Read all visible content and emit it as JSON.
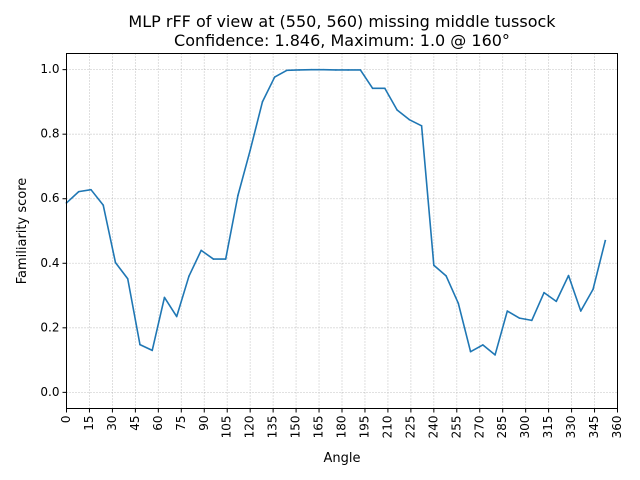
{
  "chart_data": {
    "type": "line",
    "title_line1": "MLP rFF of view at (550, 560) missing middle tussock",
    "title_line2": "Confidence: 1.846, Maximum: 1.0 @ 160°",
    "xlabel": "Angle",
    "ylabel": "Familiarity score",
    "xlim": [
      0,
      360
    ],
    "ylim": [
      -0.05,
      1.05
    ],
    "xticks": [
      0,
      15,
      30,
      45,
      60,
      75,
      90,
      105,
      120,
      135,
      150,
      165,
      180,
      195,
      210,
      225,
      240,
      255,
      270,
      285,
      300,
      315,
      330,
      345,
      360
    ],
    "yticks": [
      0.0,
      0.2,
      0.4,
      0.6,
      0.8,
      1.0
    ],
    "grid": true,
    "line_color": "#1f77b4",
    "series": [
      {
        "name": "familiarity",
        "x": [
          0,
          8,
          16,
          24,
          32,
          40,
          48,
          56,
          64,
          72,
          80,
          88,
          96,
          104,
          112,
          120,
          128,
          136,
          144,
          152,
          160,
          168,
          176,
          184,
          192,
          200,
          208,
          216,
          224,
          232,
          240,
          248,
          256,
          264,
          272,
          280,
          288,
          296,
          304,
          312,
          320,
          328,
          336,
          344,
          352
        ],
        "values": [
          0.587,
          0.622,
          0.628,
          0.58,
          0.402,
          0.352,
          0.148,
          0.13,
          0.294,
          0.235,
          0.36,
          0.44,
          0.413,
          0.413,
          0.61,
          0.75,
          0.9,
          0.977,
          0.998,
          0.999,
          1.0,
          1.0,
          0.999,
          0.999,
          0.999,
          0.942,
          0.942,
          0.875,
          0.845,
          0.826,
          0.394,
          0.361,
          0.276,
          0.126,
          0.147,
          0.116,
          0.252,
          0.23,
          0.223,
          0.309,
          0.282,
          0.362,
          0.252,
          0.319,
          0.47
        ]
      }
    ]
  }
}
